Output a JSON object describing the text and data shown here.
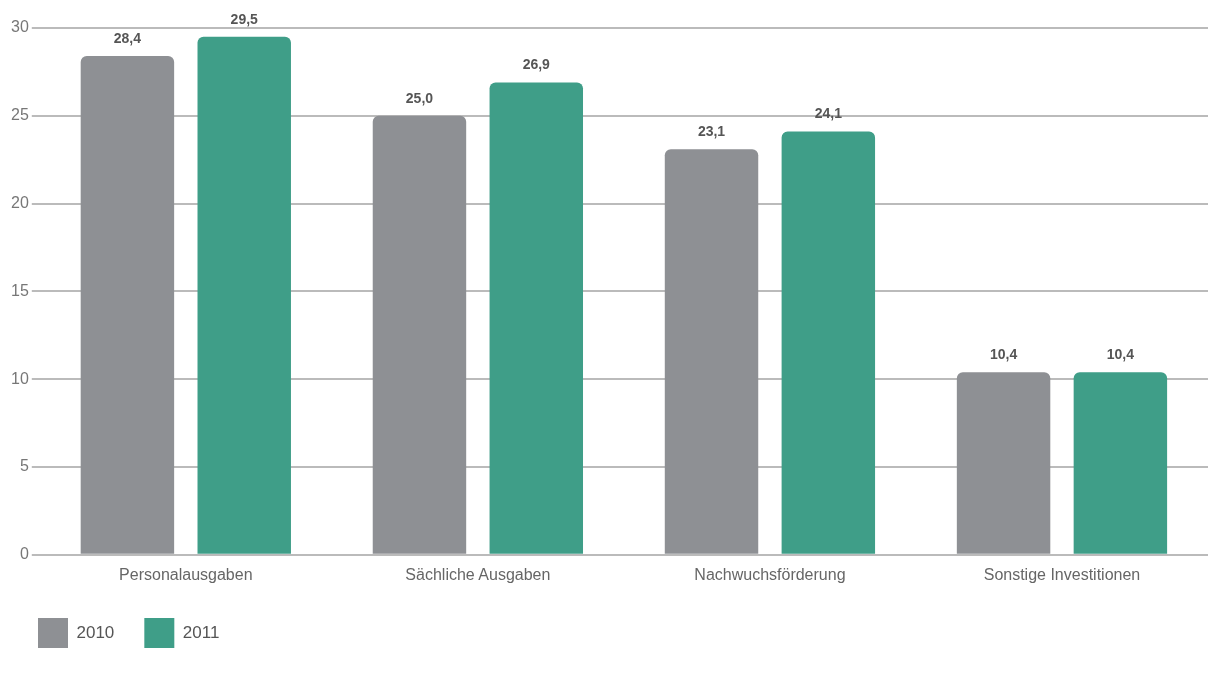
{
  "chart_data": {
    "type": "bar",
    "categories": [
      "Personalausgaben",
      "Sächliche Ausgaben",
      "Nachwuchsförderung",
      "Sonstige Investitionen"
    ],
    "series": [
      {
        "name": "2010",
        "color": "#8e9094",
        "values": [
          28.4,
          25.0,
          23.1,
          10.4
        ],
        "value_labels": [
          "28,4",
          "25,0",
          "23,1",
          "10,4"
        ]
      },
      {
        "name": "2011",
        "color": "#3f9e88",
        "values": [
          29.5,
          26.9,
          24.1,
          10.4
        ],
        "value_labels": [
          "29,5",
          "26,9",
          "24,1",
          "10,4"
        ]
      }
    ],
    "ylim": [
      0,
      30
    ],
    "yticks": [
      0,
      5,
      10,
      15,
      20,
      25,
      30
    ],
    "grid": "y",
    "legend": "bottom left"
  }
}
